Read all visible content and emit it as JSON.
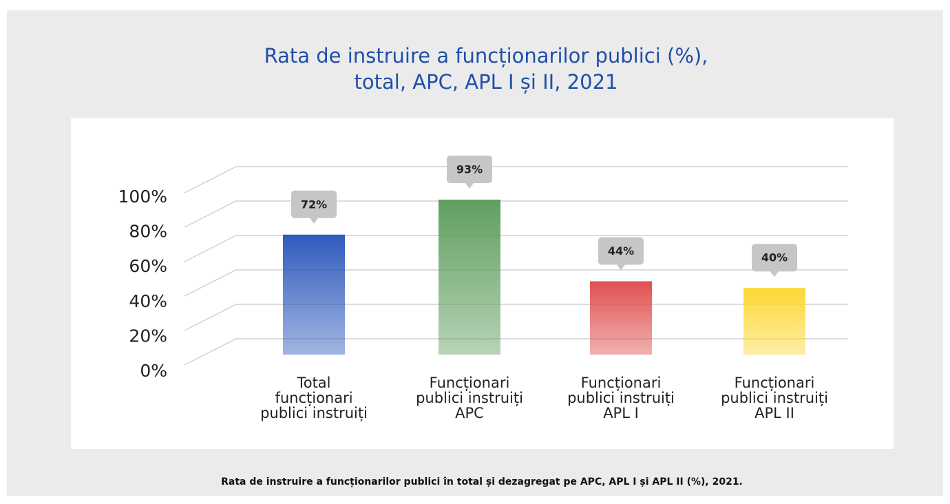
{
  "chart_data": {
    "type": "bar",
    "title": "Rata de instruire a funcționarilor publici (%),\ntotal, APC, APL I și II, 2021",
    "categories": [
      "Total\nfuncționari\npublici instruiți",
      "Funcționari\npublici instruiți\nAPC",
      "Funcționari\npublici instruiți\nAPL I",
      "Funcționari\npublici instruiți\nAPL II"
    ],
    "values": [
      72,
      93,
      44,
      40
    ],
    "value_labels": [
      "72%",
      "93%",
      "44%",
      "40%"
    ],
    "colors": [
      "#2f5bbd",
      "#5f9e5f",
      "#e05050",
      "#fdd835"
    ],
    "ylim": [
      0,
      100
    ],
    "yticks": [
      {
        "value": 0,
        "label": "0%"
      },
      {
        "value": 20,
        "label": "20%"
      },
      {
        "value": 40,
        "label": "40%"
      },
      {
        "value": 60,
        "label": "60%"
      },
      {
        "value": 80,
        "label": "80%"
      },
      {
        "value": 100,
        "label": "100%"
      }
    ],
    "grid": true,
    "caption": "Rata de instruire a funcționarilor publici în total și dezagregat pe APC, APL I și APL II (%), 2021."
  }
}
